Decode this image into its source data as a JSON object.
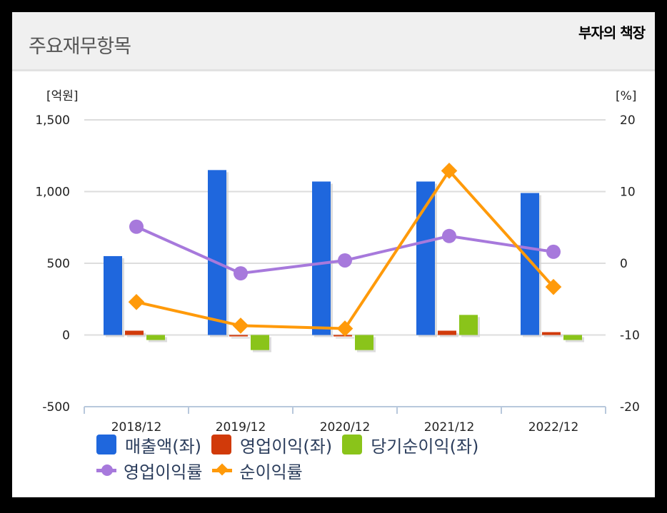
{
  "header": {
    "title": "주요재무항목",
    "watermark": "부자의 책장"
  },
  "colors": {
    "revenue": "#1f67dd",
    "operating_profit": "#d13a0a",
    "net_income": "#8ac41a",
    "operating_margin": "#a779dc",
    "net_margin": "#ff9a0a"
  },
  "chart_data": {
    "type": "bar",
    "title": "주요재무항목",
    "categories": [
      "2018/12",
      "2019/12",
      "2020/12",
      "2021/12",
      "2022/12"
    ],
    "left_axis": {
      "unit_label": "[억원]",
      "ticks": [
        "1,500",
        "1,000",
        "500",
        "0",
        "-500"
      ],
      "ylim": [
        -500,
        1500
      ]
    },
    "right_axis": {
      "unit_label": "[%]",
      "ticks": [
        "20",
        "10",
        "0",
        "-10",
        "-20"
      ],
      "ylim": [
        -20,
        20
      ]
    },
    "series": [
      {
        "name": "매출액(좌)",
        "type": "bar",
        "axis": "left",
        "values": [
          550,
          1150,
          1070,
          1070,
          990
        ]
      },
      {
        "name": "영업이익(좌)",
        "type": "bar",
        "axis": "left",
        "values": [
          30,
          -10,
          -10,
          30,
          20
        ]
      },
      {
        "name": "당기순이익(좌)",
        "type": "bar",
        "axis": "left",
        "values": [
          -35,
          -105,
          -105,
          140,
          -35
        ]
      },
      {
        "name": "영업이익률",
        "type": "line",
        "axis": "right",
        "marker": "circle",
        "values": [
          5.1,
          -1.4,
          0.4,
          3.8,
          1.6
        ]
      },
      {
        "name": "순이익률",
        "type": "line",
        "axis": "right",
        "marker": "diamond",
        "values": [
          -5.4,
          -8.7,
          -9.1,
          12.9,
          -3.3
        ]
      }
    ],
    "grid": true,
    "legend_position": "bottom"
  },
  "legend": {
    "items": [
      {
        "label": "매출액(좌)"
      },
      {
        "label": "영업이익(좌)"
      },
      {
        "label": "당기순이익(좌)"
      },
      {
        "label": "영업이익률"
      },
      {
        "label": "순이익률"
      }
    ]
  }
}
